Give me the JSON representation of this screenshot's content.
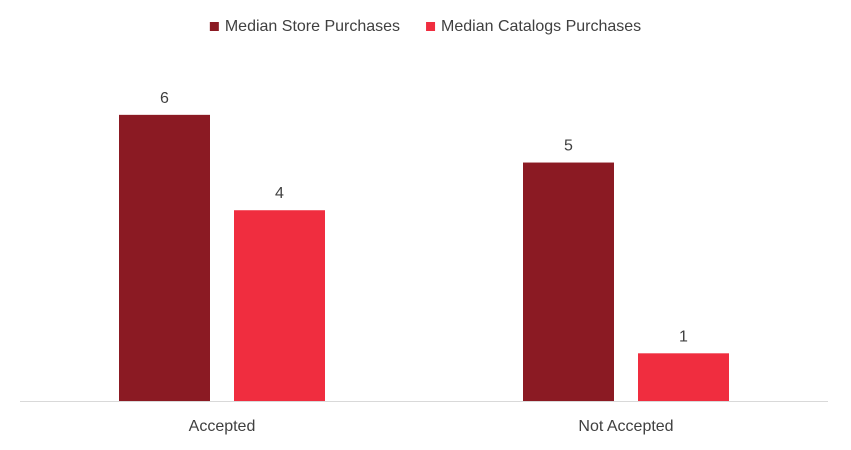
{
  "chart_data": {
    "type": "bar",
    "categories": [
      "Accepted",
      "Not Accepted"
    ],
    "series": [
      {
        "name": "Median Store Purchases",
        "values": [
          6,
          5
        ],
        "color": "#8B1A23"
      },
      {
        "name": "Median Catalogs Purchases",
        "values": [
          4,
          1
        ],
        "color": "#F02D3F"
      }
    ],
    "title": "",
    "xlabel": "",
    "ylabel": "",
    "ylim": [
      0,
      6.5
    ],
    "legend_position": "top-center",
    "grid": false,
    "data_labels": true,
    "axis_color": "#D9D9D9"
  }
}
